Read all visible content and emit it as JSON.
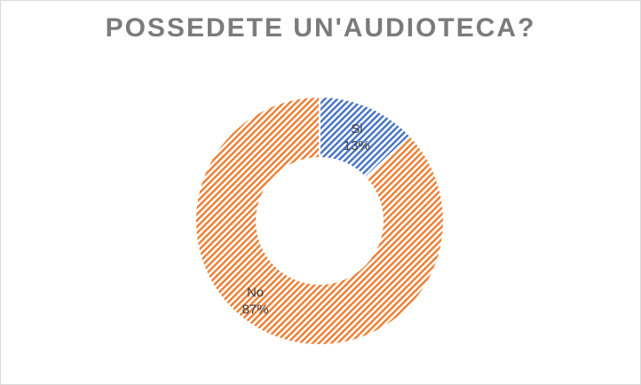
{
  "chart_data": {
    "type": "pie",
    "variant": "doughnut",
    "title": "POSSEDETE UN'AUDIOTECA?",
    "categories": [
      "Si",
      "No"
    ],
    "values": [
      13,
      87
    ],
    "value_labels": [
      "13%",
      "87%"
    ],
    "colors": [
      "#4472C4",
      "#ED7D31"
    ],
    "fill_pattern": "diagonal-stripes",
    "legend": "none"
  }
}
